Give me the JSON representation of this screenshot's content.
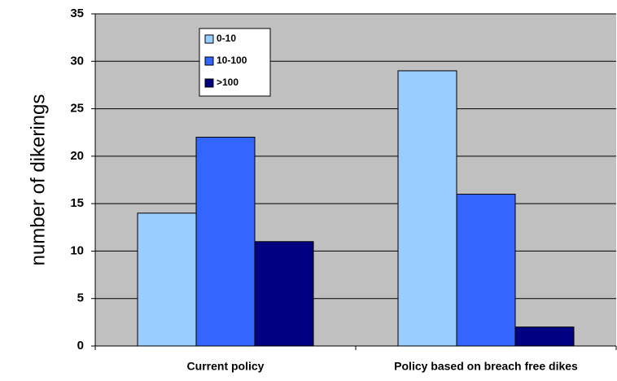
{
  "chart_data": {
    "type": "bar",
    "categories": [
      "Current policy",
      "Policy based on breach free dikes"
    ],
    "series": [
      {
        "name": "0-10",
        "values": [
          14,
          29
        ],
        "color": "#99ccff"
      },
      {
        "name": "10-100",
        "values": [
          22,
          16
        ],
        "color": "#3366ff"
      },
      {
        "name": ">100",
        "values": [
          11,
          2
        ],
        "color": "#000080"
      }
    ],
    "ylabel": "number of dikerings",
    "xlabel": "",
    "ylim": [
      0,
      35
    ],
    "yticks": [
      0,
      5,
      10,
      15,
      20,
      25,
      30,
      35
    ],
    "grid": true,
    "legend": "top-left inside plot",
    "plot_background": "#c0c0c0"
  }
}
